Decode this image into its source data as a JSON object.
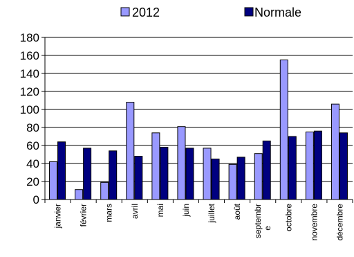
{
  "chart_data": {
    "type": "bar",
    "title": "",
    "xlabel": "",
    "ylabel": "",
    "categories": [
      "janvier",
      "février",
      "mars",
      "avril",
      "mai",
      "juin",
      "juillet",
      "août",
      "septembre",
      "octobre",
      "novembre",
      "décembre"
    ],
    "series": [
      {
        "name": "2012",
        "values": [
          42,
          11,
          19,
          108,
          74,
          81,
          57,
          39,
          51,
          155,
          75,
          106
        ],
        "color": "#9999ff"
      },
      {
        "name": "Normale",
        "values": [
          64,
          57,
          54,
          48,
          58,
          57,
          45,
          47,
          65,
          70,
          76,
          74
        ],
        "color": "#000080"
      }
    ],
    "ylim": [
      0,
      180
    ],
    "yticks": [
      0,
      20,
      40,
      60,
      80,
      100,
      120,
      140,
      160,
      180
    ],
    "grid": true,
    "legend": "top-center"
  }
}
